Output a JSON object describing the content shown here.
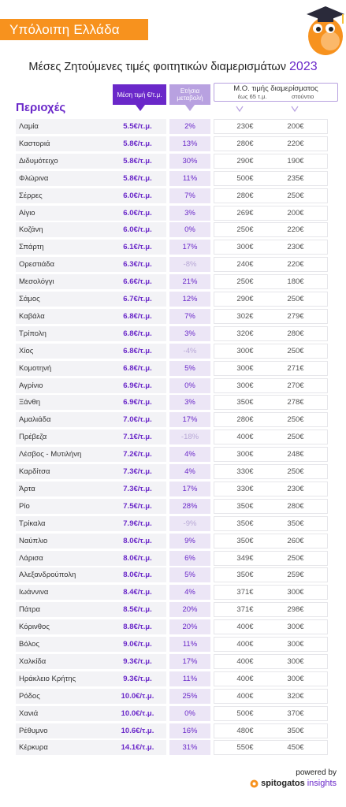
{
  "banner": "Υπόλοιπη Ελλάδα",
  "title": "Μέσες Ζητούμενες τιμές φοιτητικών διαμερισμάτων",
  "title_year": "2023",
  "headers": {
    "regions": "Περιοχές",
    "price": "Μέση τιμή €/τ.μ.",
    "change_line1": "Ετήσια",
    "change_line2": "μεταβολή",
    "avg_main": "Μ.Ο. τιμής διαμερίσματος",
    "avg_sub1": "έως 65 τ.μ.",
    "avg_sub2": "στούντιο"
  },
  "colors": {
    "accent": "#6a28c9",
    "banner": "#f7921e",
    "light_purple": "#b8a1e0"
  },
  "chart_data": {
    "type": "table",
    "columns": [
      "Περιοχές",
      "Μέση τιμή €/τ.μ.",
      "Ετήσια μεταβολή",
      "έως 65 τ.μ.",
      "στούντιο"
    ],
    "rows": [
      {
        "region": "Λαμία",
        "price": "5.5€/τ.μ.",
        "change": "2%",
        "avg65": "230€",
        "studio": "200€"
      },
      {
        "region": "Καστοριά",
        "price": "5.8€/τ.μ.",
        "change": "13%",
        "avg65": "280€",
        "studio": "220€"
      },
      {
        "region": "Διδυμότειχο",
        "price": "5.8€/τ.μ.",
        "change": "30%",
        "avg65": "290€",
        "studio": "190€"
      },
      {
        "region": "Φλώρινα",
        "price": "5.8€/τ.μ.",
        "change": "11%",
        "avg65": "500€",
        "studio": "235€"
      },
      {
        "region": "Σέρρες",
        "price": "6.0€/τ.μ.",
        "change": "7%",
        "avg65": "280€",
        "studio": "250€"
      },
      {
        "region": "Αίγιο",
        "price": "6.0€/τ.μ.",
        "change": "3%",
        "avg65": "269€",
        "studio": "200€"
      },
      {
        "region": "Κοζάνη",
        "price": "6.0€/τ.μ.",
        "change": "0%",
        "avg65": "250€",
        "studio": "220€"
      },
      {
        "region": "Σπάρτη",
        "price": "6.1€/τ.μ.",
        "change": "17%",
        "avg65": "300€",
        "studio": "230€"
      },
      {
        "region": "Ορεστιάδα",
        "price": "6.3€/τ.μ.",
        "change": "-8%",
        "avg65": "240€",
        "studio": "220€"
      },
      {
        "region": "Μεσολόγγι",
        "price": "6.6€/τ.μ.",
        "change": "21%",
        "avg65": "250€",
        "studio": "180€"
      },
      {
        "region": "Σάμος",
        "price": "6.7€/τ.μ.",
        "change": "12%",
        "avg65": "290€",
        "studio": "250€"
      },
      {
        "region": "Καβάλα",
        "price": "6.8€/τ.μ.",
        "change": "7%",
        "avg65": "302€",
        "studio": "279€"
      },
      {
        "region": "Τρίπολη",
        "price": "6.8€/τ.μ.",
        "change": "3%",
        "avg65": "320€",
        "studio": "280€"
      },
      {
        "region": "Χίος",
        "price": "6.8€/τ.μ.",
        "change": "-4%",
        "avg65": "300€",
        "studio": "250€"
      },
      {
        "region": "Κομοτηνή",
        "price": "6.8€/τ.μ.",
        "change": "5%",
        "avg65": "300€",
        "studio": "271€"
      },
      {
        "region": "Αγρίνιο",
        "price": "6.9€/τ.μ.",
        "change": "0%",
        "avg65": "300€",
        "studio": "270€"
      },
      {
        "region": "Ξάνθη",
        "price": "6.9€/τ.μ.",
        "change": "3%",
        "avg65": "350€",
        "studio": "278€"
      },
      {
        "region": "Αμαλιάδα",
        "price": "7.0€/τ.μ.",
        "change": "17%",
        "avg65": "280€",
        "studio": "250€"
      },
      {
        "region": "Πρέβεζα",
        "price": "7.1€/τ.μ.",
        "change": "-18%",
        "avg65": "400€",
        "studio": "250€"
      },
      {
        "region": "Λέσβος - Μυτιλήνη",
        "price": "7.2€/τ.μ.",
        "change": "4%",
        "avg65": "300€",
        "studio": "248€"
      },
      {
        "region": "Καρδίτσα",
        "price": "7.3€/τ.μ.",
        "change": "4%",
        "avg65": "330€",
        "studio": "250€"
      },
      {
        "region": "Άρτα",
        "price": "7.3€/τ.μ.",
        "change": "17%",
        "avg65": "330€",
        "studio": "230€"
      },
      {
        "region": "Ρίο",
        "price": "7.5€/τ.μ.",
        "change": "28%",
        "avg65": "350€",
        "studio": "280€"
      },
      {
        "region": "Τρίκαλα",
        "price": "7.9€/τ.μ.",
        "change": "-9%",
        "avg65": "350€",
        "studio": "350€"
      },
      {
        "region": "Ναύπλιο",
        "price": "8.0€/τ.μ.",
        "change": "9%",
        "avg65": "350€",
        "studio": "260€"
      },
      {
        "region": "Λάρισα",
        "price": "8.0€/τ.μ.",
        "change": "6%",
        "avg65": "349€",
        "studio": "250€"
      },
      {
        "region": "Αλεξανδρούπολη",
        "price": "8.0€/τ.μ.",
        "change": "5%",
        "avg65": "350€",
        "studio": "259€"
      },
      {
        "region": "Ιωάννινα",
        "price": "8.4€/τ.μ.",
        "change": "4%",
        "avg65": "371€",
        "studio": "300€"
      },
      {
        "region": "Πάτρα",
        "price": "8.5€/τ.μ.",
        "change": "20%",
        "avg65": "371€",
        "studio": "298€"
      },
      {
        "region": "Κόρινθος",
        "price": "8.8€/τ.μ.",
        "change": "20%",
        "avg65": "400€",
        "studio": "300€"
      },
      {
        "region": "Βόλος",
        "price": "9.0€/τ.μ.",
        "change": "11%",
        "avg65": "400€",
        "studio": "300€"
      },
      {
        "region": "Χαλκίδα",
        "price": "9.3€/τ.μ.",
        "change": "17%",
        "avg65": "400€",
        "studio": "300€"
      },
      {
        "region": "Ηράκλειο Κρήτης",
        "price": "9.3€/τ.μ.",
        "change": "11%",
        "avg65": "400€",
        "studio": "300€"
      },
      {
        "region": "Ρόδος",
        "price": "10.0€/τ.μ.",
        "change": "25%",
        "avg65": "400€",
        "studio": "320€"
      },
      {
        "region": "Χανιά",
        "price": "10.0€/τ.μ.",
        "change": "0%",
        "avg65": "500€",
        "studio": "370€"
      },
      {
        "region": "Ρέθυμνο",
        "price": "10.6€/τ.μ.",
        "change": "16%",
        "avg65": "480€",
        "studio": "350€"
      },
      {
        "region": "Κέρκυρα",
        "price": "14.1€/τ.μ.",
        "change": "31%",
        "avg65": "550€",
        "studio": "450€"
      }
    ]
  },
  "footer": {
    "powered": "powered by",
    "brand": "spitogatos",
    "brand_suffix": "insights"
  }
}
